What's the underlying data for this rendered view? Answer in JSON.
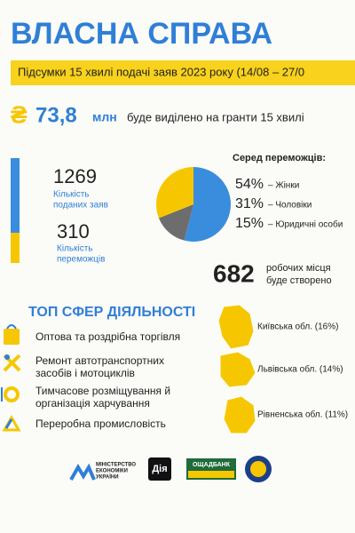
{
  "header": {
    "title": "ВЛАСНА СПРАВА",
    "subtitle": "Підсумки 15 хвилі подачі заяв 2023 року (14/08 – 27/0"
  },
  "grants": {
    "currency": "₴",
    "amount": "73,8",
    "unit": "млн",
    "text": "буде виділено на гранти 15 хвилі"
  },
  "stats": [
    {
      "value": 1269,
      "label": [
        "Кількість",
        "поданих заяв"
      ]
    },
    {
      "value": 310,
      "label": [
        "Кількість",
        "переможців"
      ]
    }
  ],
  "winners": {
    "title": "Серед переможців:",
    "items": [
      {
        "value": 54,
        "label": "54%",
        "text": "– Жінки",
        "color": "#3a8ddc"
      },
      {
        "value": 15,
        "label": "15%",
        "text": "– Юридичні особи",
        "color": "#6d6d6d"
      },
      {
        "value": 31,
        "label": "31%",
        "text": "– Чоловіки",
        "color": "#f6c700"
      }
    ]
  },
  "jobs": {
    "value": 682,
    "label": [
      "робочих місця",
      "буде створено"
    ]
  },
  "sectors": {
    "title": "ТОП СФЕР ДІЯЛЬНОСТІ",
    "items": [
      [
        "Оптова та роздрібна торгівля"
      ],
      [
        "Ремонт автотранспортних",
        "засобів і мотоциклів"
      ],
      [
        "Тимчасове розміщування й",
        "організація харчування"
      ],
      [
        "Переробна промисловість"
      ]
    ]
  },
  "regions": [
    "Київська обл. (16%)",
    "Львівська обл. (14%)",
    "Рівненська обл. (11%)"
  ],
  "logos": {
    "ministry": [
      "МІНІСТЕРСТВО",
      "ЕКОНОМІКИ",
      "УКРАЇНИ"
    ],
    "diia": "Дія",
    "bank": "ОЩАДБАНК"
  }
}
